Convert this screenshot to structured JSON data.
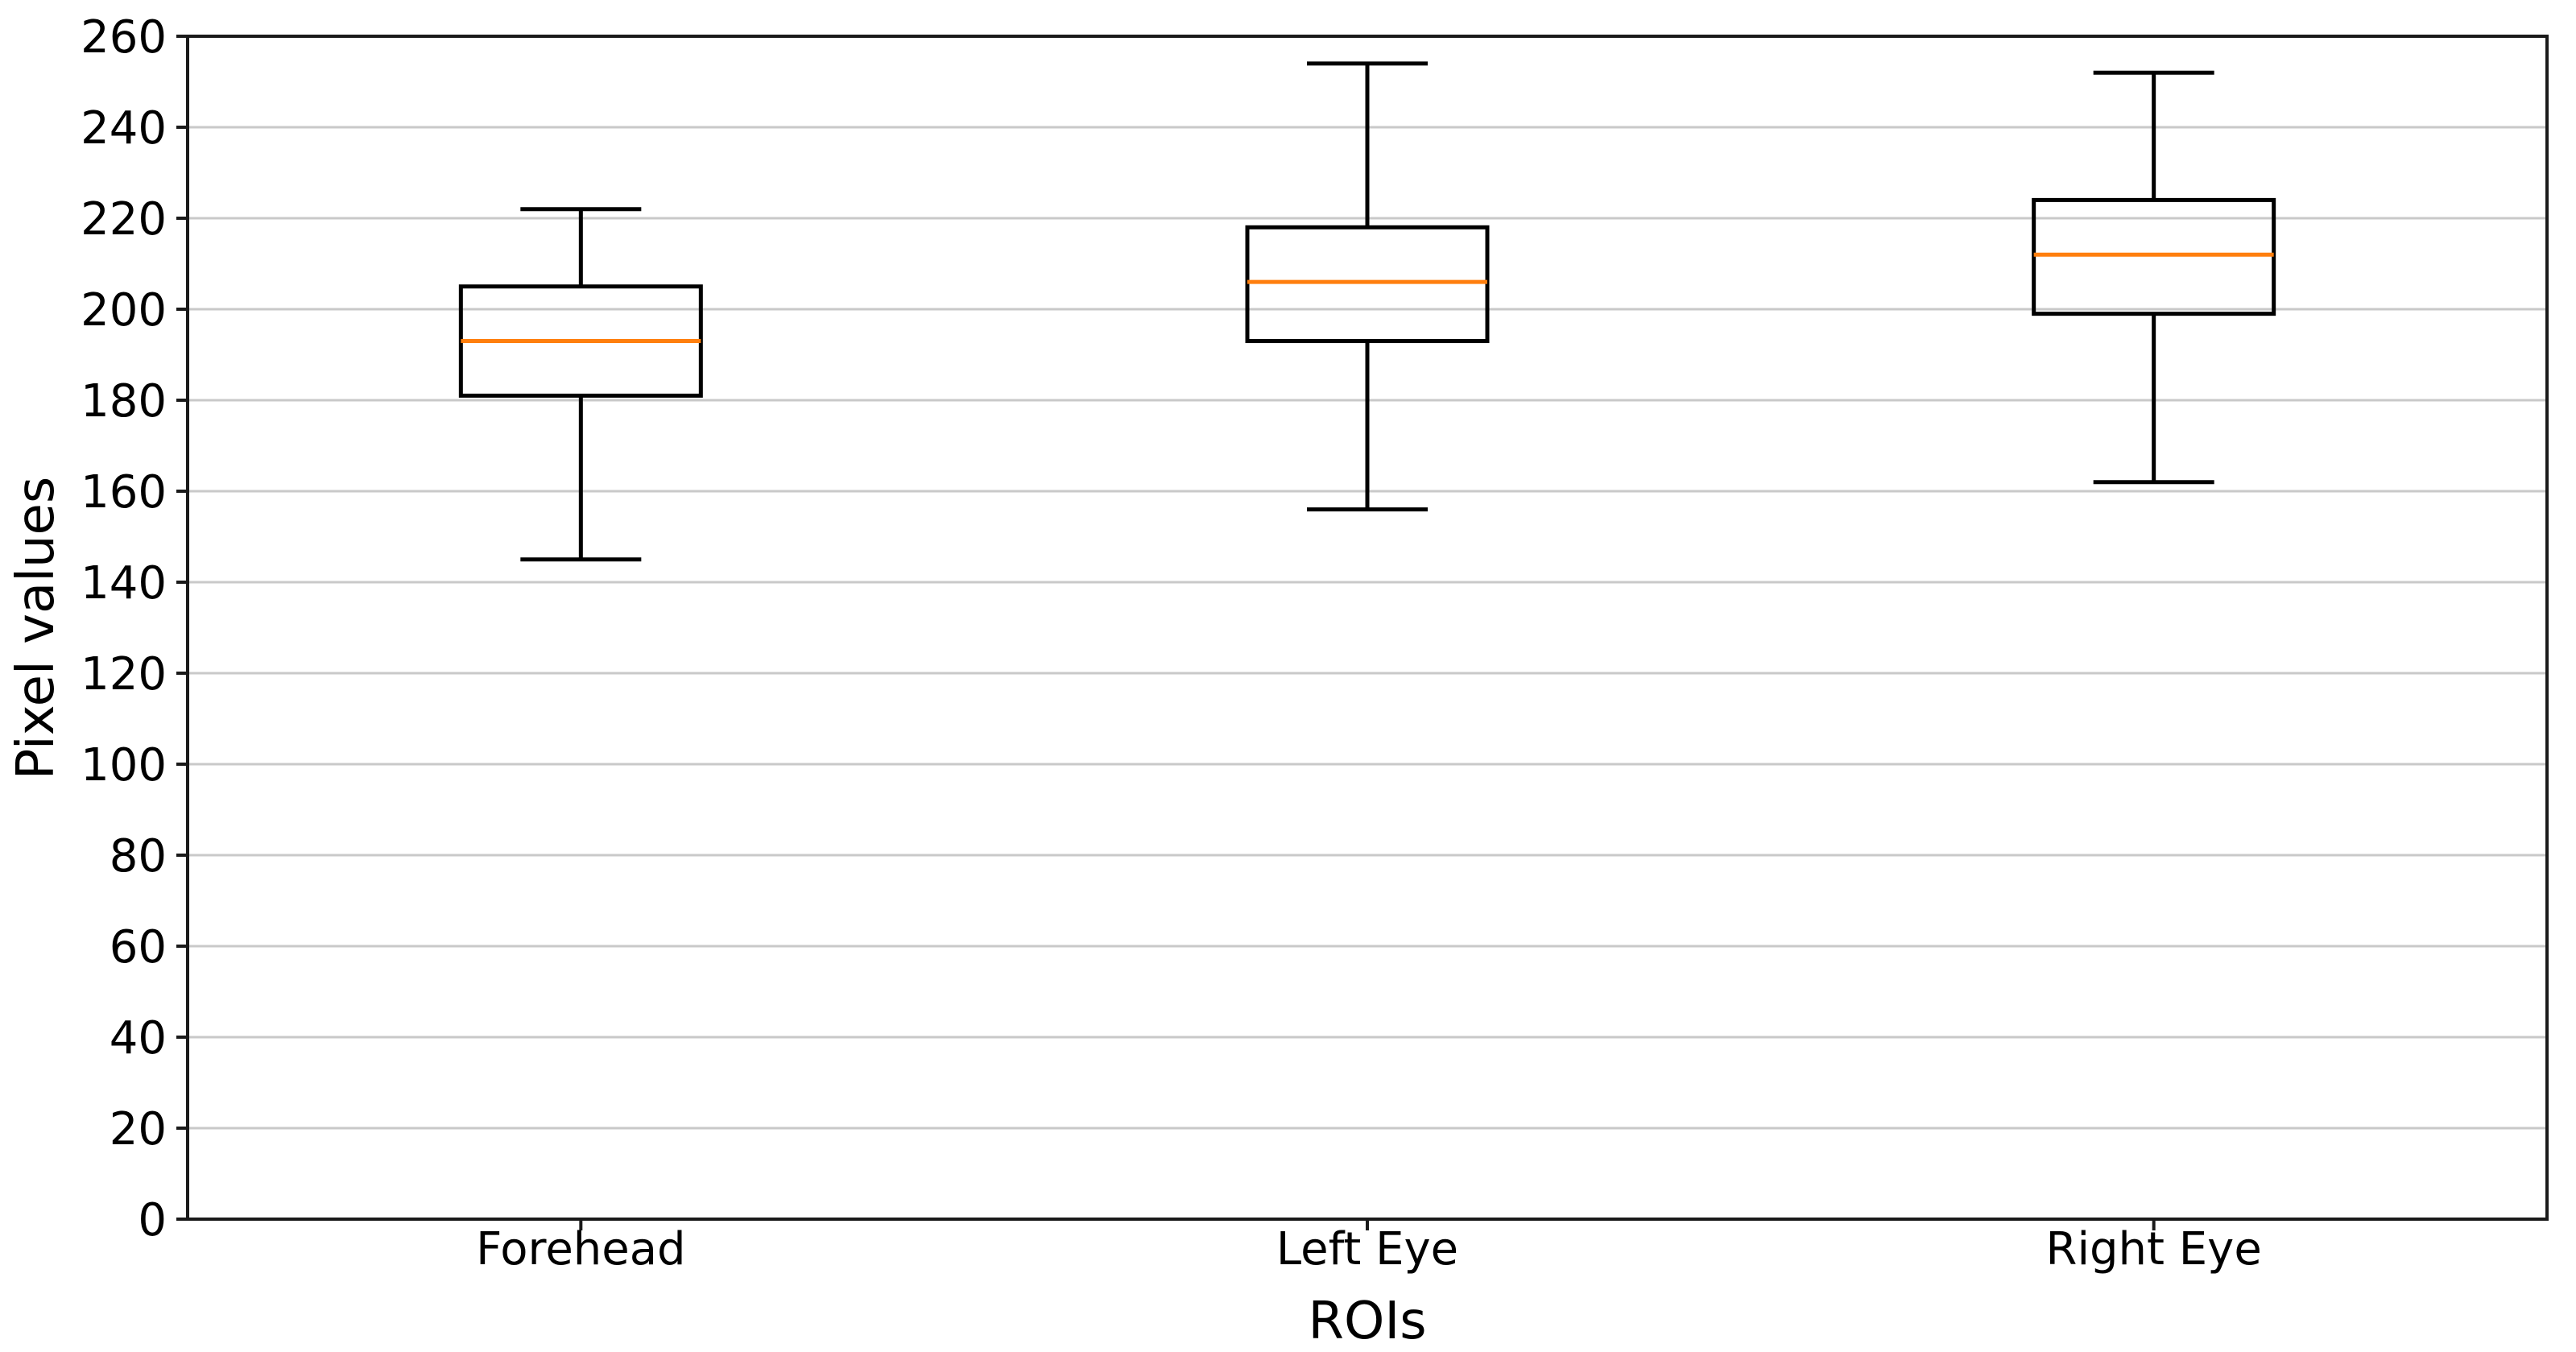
{
  "chart_data": {
    "type": "boxplot",
    "title": "",
    "xlabel": "ROIs",
    "ylabel": "Pixel values",
    "categories": [
      "Forehead",
      "Left Eye",
      "Right Eye"
    ],
    "yticks": [
      0,
      20,
      40,
      60,
      80,
      100,
      120,
      140,
      160,
      180,
      200,
      220,
      240,
      260
    ],
    "ylim": [
      0,
      260
    ],
    "grid": "horizontal",
    "legend_position": "none",
    "colors": {
      "box_line": "#000000",
      "median_line": "#ff7f0e",
      "gridline": "#c9c9c9",
      "spine": "#1a1a1a",
      "background": "#ffffff",
      "text": "#000000"
    },
    "series": [
      {
        "name": "Forehead",
        "whisker_low": 145,
        "q1": 181,
        "median": 193,
        "q3": 205,
        "whisker_high": 222
      },
      {
        "name": "Left Eye",
        "whisker_low": 156,
        "q1": 193,
        "median": 206,
        "q3": 218,
        "whisker_high": 254
      },
      {
        "name": "Right Eye",
        "whisker_low": 162,
        "q1": 199,
        "median": 212,
        "q3": 224,
        "whisker_high": 252
      }
    ]
  }
}
